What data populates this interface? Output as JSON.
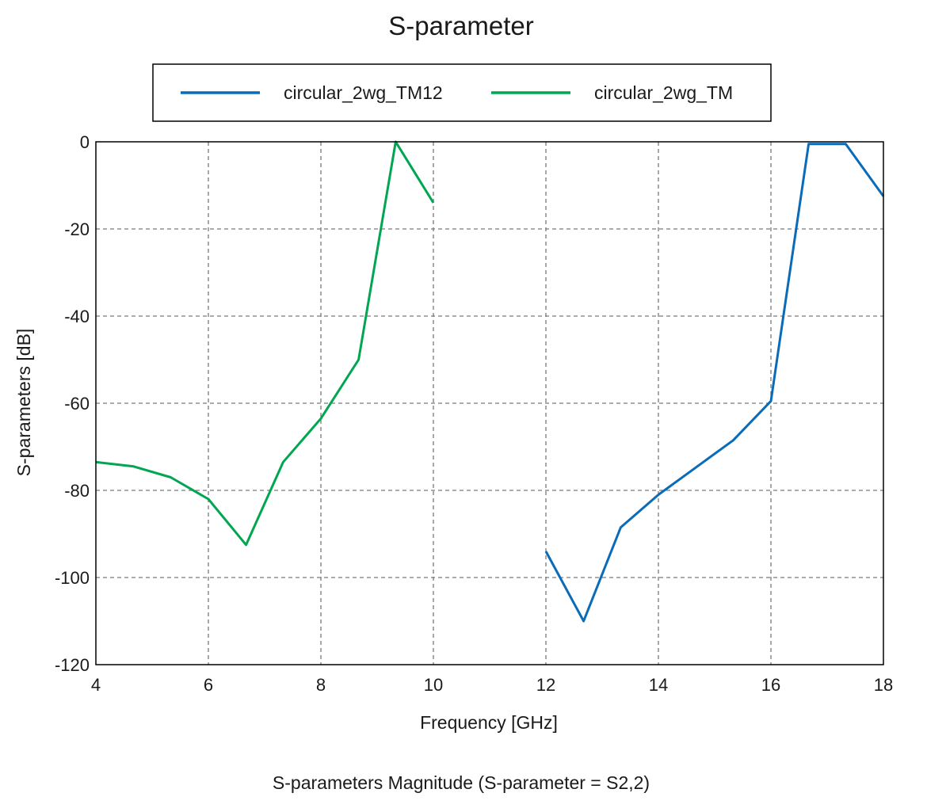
{
  "chart_data": {
    "type": "line",
    "title": "S-parameter",
    "xlabel": "Frequency [GHz]",
    "ylabel": "S-parameters [dB]",
    "caption": "S-parameters Magnitude (S-parameter = S2,2)",
    "xlim": [
      4,
      18
    ],
    "ylim": [
      -120,
      0
    ],
    "x_ticks": [
      "4",
      "6",
      "8",
      "10",
      "12",
      "14",
      "16",
      "18"
    ],
    "y_ticks": [
      "0",
      "-20",
      "-40",
      "-60",
      "-80",
      "-100",
      "-120"
    ],
    "grid": true,
    "legend_position": "top",
    "series": [
      {
        "name": "circular_2wg_TM12",
        "color": "#0a6bb8",
        "x": [
          12,
          12.67,
          13.33,
          14,
          15.33,
          16,
          16.67,
          17.33,
          18
        ],
        "y": [
          -94,
          -110,
          -88.5,
          -81,
          -68.5,
          -59.5,
          -0.5,
          -0.5,
          -12.5
        ]
      },
      {
        "name": "circular_2wg_TM",
        "color": "#00a650",
        "x": [
          4,
          4.67,
          5.33,
          6,
          6.67,
          7.33,
          8,
          8.67,
          9.33,
          10
        ],
        "y": [
          -73.5,
          -74.5,
          -77,
          -82,
          -92.5,
          -73.5,
          -63.5,
          -50,
          0,
          -14
        ]
      }
    ]
  }
}
